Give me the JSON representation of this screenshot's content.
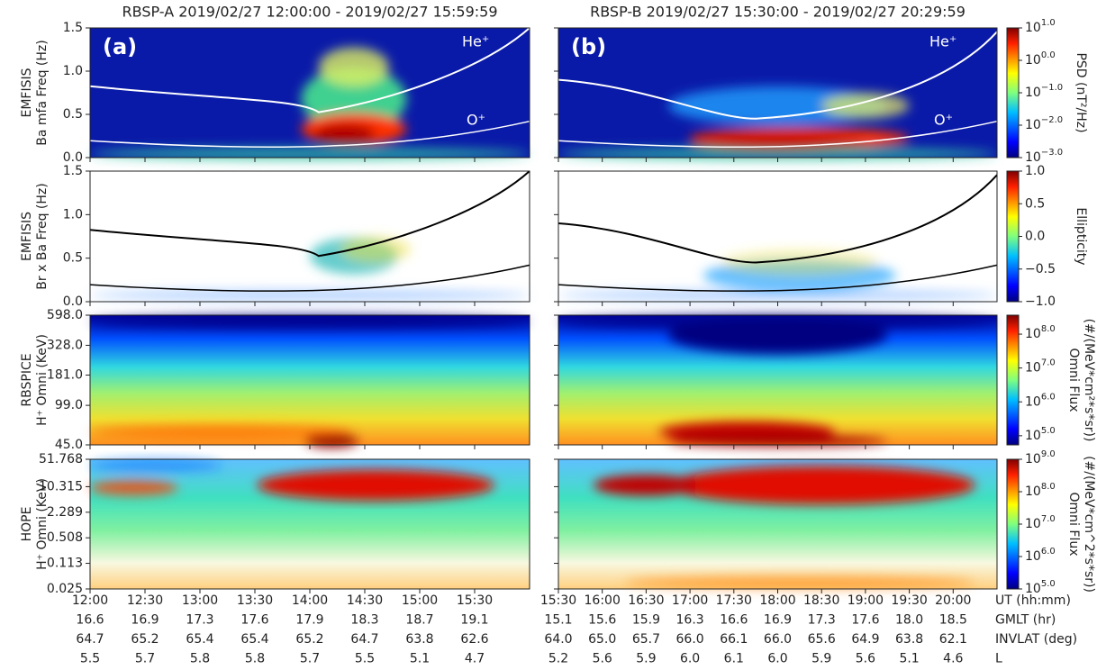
{
  "x_row_labels": [
    "UT (hh:mm)",
    "GMLT (hr)",
    "INVLAT (deg)",
    "L"
  ],
  "columns": [
    {
      "title": "RBSP-A  2019/02/27 12:00:00 - 2019/02/27 15:59:59",
      "panel_label": "(a)",
      "xlim": [
        12,
        16
      ],
      "xticks": [
        {
          "value": 12,
          "label": "12:00"
        },
        {
          "value": 12.5,
          "label": "12:30"
        },
        {
          "value": 13,
          "label": "13:00"
        },
        {
          "value": 13.5,
          "label": "13:30"
        },
        {
          "value": 14,
          "label": "14:00"
        },
        {
          "value": 14.5,
          "label": "14:30"
        },
        {
          "value": 15,
          "label": "15:00"
        },
        {
          "value": 15.5,
          "label": "15:30"
        }
      ],
      "gmlt": [
        "16.6",
        "16.9",
        "17.3",
        "17.6",
        "17.9",
        "18.3",
        "18.7",
        "19.1"
      ],
      "invlat": [
        "64.7",
        "65.2",
        "65.4",
        "65.4",
        "65.2",
        "64.7",
        "63.8",
        "62.6"
      ],
      "l": [
        "5.5",
        "5.7",
        "5.8",
        "5.8",
        "5.7",
        "5.5",
        "5.1",
        "4.7"
      ]
    },
    {
      "title": "RBSP-B  2019/02/27 15:30:00 - 2019/02/27 20:29:59",
      "panel_label": "(b)",
      "xlim": [
        15.5,
        20.5
      ],
      "xticks": [
        {
          "value": 15.5,
          "label": "15:30"
        },
        {
          "value": 16,
          "label": "16:00"
        },
        {
          "value": 16.5,
          "label": "16:30"
        },
        {
          "value": 17,
          "label": "17:00"
        },
        {
          "value": 17.5,
          "label": "17:30"
        },
        {
          "value": 18,
          "label": "18:00"
        },
        {
          "value": 18.5,
          "label": "18:30"
        },
        {
          "value": 19,
          "label": "19:00"
        },
        {
          "value": 19.5,
          "label": "19:30"
        },
        {
          "value": 20,
          "label": "20:00"
        }
      ],
      "gmlt": [
        "15.1",
        "15.6",
        "15.9",
        "16.3",
        "16.6",
        "16.9",
        "17.3",
        "17.6",
        "18.0",
        "18.5"
      ],
      "invlat": [
        "64.0",
        "65.0",
        "65.7",
        "66.0",
        "66.1",
        "66.0",
        "65.6",
        "64.9",
        "63.8",
        "62.1"
      ],
      "l": [
        "5.2",
        "5.6",
        "5.9",
        "6.0",
        "6.1",
        "6.0",
        "5.9",
        "5.6",
        "5.1",
        "4.6"
      ]
    }
  ],
  "annotations": {
    "he": "He⁺",
    "o": "O⁺"
  },
  "panels": [
    {
      "ylabel": [
        "EMFISIS",
        "Ba mfa Freq (Hz)"
      ],
      "ylim": [
        0,
        1.5
      ],
      "log": false,
      "yticks": [
        {
          "value": 0,
          "label": "0.0"
        },
        {
          "value": 0.5,
          "label": "0.5"
        },
        {
          "value": 1,
          "label": "1.0"
        },
        {
          "value": 1.5,
          "label": "1.5"
        }
      ],
      "colorbar": {
        "label": "PSD (nT²/Hz)",
        "log_base": "10",
        "lim": [
          -3,
          1
        ],
        "ticks": [
          {
            "value": 1,
            "label": "1.0"
          },
          {
            "value": 0,
            "label": "0.0"
          },
          {
            "value": -1,
            "label": "−1.0"
          },
          {
            "value": -2,
            "label": "−2.0"
          },
          {
            "value": -3,
            "label": "−3.0"
          }
        ]
      }
    },
    {
      "ylabel": [
        "EMFISIS",
        "Br x Ba Freq (Hz)"
      ],
      "ylim": [
        0,
        1.5
      ],
      "log": false,
      "yticks": [
        {
          "value": 0,
          "label": "0.0"
        },
        {
          "value": 0.5,
          "label": "0.5"
        },
        {
          "value": 1,
          "label": "1.0"
        },
        {
          "value": 1.5,
          "label": "1.5"
        }
      ],
      "colorbar": {
        "label": "Ellipticity",
        "lim": [
          -1,
          1
        ],
        "ticks": [
          {
            "value": 1,
            "label": "1.0"
          },
          {
            "value": 0.5,
            "label": "0.5"
          },
          {
            "value": 0,
            "label": "0.0"
          },
          {
            "value": -0.5,
            "label": "−0.5"
          },
          {
            "value": -1,
            "label": "−1.0"
          }
        ]
      }
    },
    {
      "ylabel": [
        "RBSPICE",
        "H⁺ Omni (KeV)"
      ],
      "ylim": [
        45,
        598
      ],
      "log": true,
      "yticks": [
        {
          "value": 45,
          "label": "45.0"
        },
        {
          "value": 99,
          "label": "99.0"
        },
        {
          "value": 181,
          "label": "181.0"
        },
        {
          "value": 328,
          "label": "328.0"
        },
        {
          "value": 598,
          "label": "598.0"
        }
      ],
      "colorbar": {
        "label": [
          "Omni Flux",
          "(#/(MeV*cm²*s*sr))"
        ],
        "log_base": "10",
        "lim": [
          4.73,
          8.56
        ],
        "ticks": [
          {
            "value": 8,
            "label": "8.0"
          },
          {
            "value": 7,
            "label": "7.0"
          },
          {
            "value": 6,
            "label": "6.0"
          },
          {
            "value": 5,
            "label": "5.0"
          }
        ]
      }
    },
    {
      "ylabel": [
        "HOPE",
        "H⁺ Omni (KeV)"
      ],
      "ylim": [
        0.025,
        51.768
      ],
      "log": true,
      "yticks": [
        0.025,
        0.113,
        0.508,
        2.289,
        10.315,
        51.768
      ],
      "colorbar": {
        "label": [
          "Omni Flux",
          "(#/(MeV*cm^2*s*sr))"
        ],
        "log_base": "10",
        "lim": [
          5,
          9
        ],
        "ticks": [
          {
            "value": 9,
            "label": "9.0"
          },
          {
            "value": 8,
            "label": "8.0"
          },
          {
            "value": 7,
            "label": "7.0"
          },
          {
            "value": 6,
            "label": "6.0"
          },
          {
            "value": 5,
            "label": "5.0"
          }
        ]
      }
    }
  ]
}
